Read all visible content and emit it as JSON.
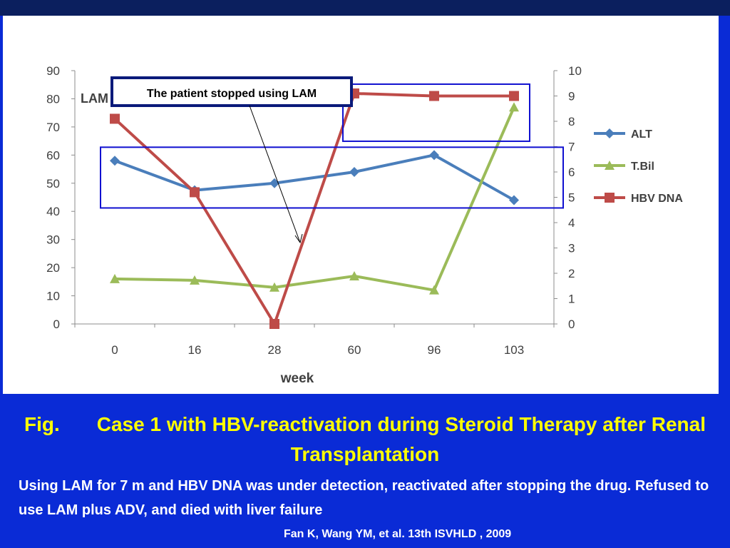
{
  "chart_data": {
    "type": "line",
    "xlabel": "week",
    "ylabel_left": "LAM",
    "categories": [
      "0",
      "16",
      "28",
      "60",
      "96",
      "103"
    ],
    "y_left": {
      "range": [
        0,
        90
      ],
      "ticks": [
        0,
        10,
        20,
        30,
        40,
        50,
        60,
        70,
        80,
        90
      ]
    },
    "y_right": {
      "range": [
        0,
        10
      ],
      "ticks": [
        0,
        1,
        2,
        3,
        4,
        5,
        6,
        7,
        8,
        9,
        10
      ]
    },
    "grid": false,
    "legend_position": "right",
    "series": [
      {
        "name": "ALT",
        "axis": "left",
        "color": "#4a7ebb",
        "marker": "diamond",
        "values": [
          58,
          47.5,
          50,
          54,
          60,
          44
        ]
      },
      {
        "name": "T.Bil",
        "axis": "left",
        "color": "#9bbb59",
        "marker": "triangle",
        "values": [
          16,
          15.5,
          13,
          17,
          12,
          77
        ]
      },
      {
        "name": "HBV DNA",
        "axis": "right",
        "color": "#be4b48",
        "marker": "square",
        "values": [
          8.1,
          5.2,
          0,
          9.1,
          9,
          9
        ]
      }
    ],
    "annotation": {
      "text": "The patient stopped using LAM",
      "points_to_week": "28"
    }
  },
  "caption": {
    "fig_label": "Fig.",
    "title": "Case 1 with HBV-reactivation during Steroid Therapy after Renal Transplantation",
    "body": "Using LAM for 7 m and HBV DNA was under detection, reactivated after stopping the drug. Refused to use LAM plus ADV, and died with liver failure",
    "citation": "Fan K, Wang YM, et al. 13th ISVHLD , 2009"
  },
  "colors": {
    "background": "#0a2bd6",
    "title_text": "#ffff00",
    "body_text": "#ffffff",
    "highlight_box": "#1010d0",
    "annotation_box": "#0a1a7a"
  }
}
